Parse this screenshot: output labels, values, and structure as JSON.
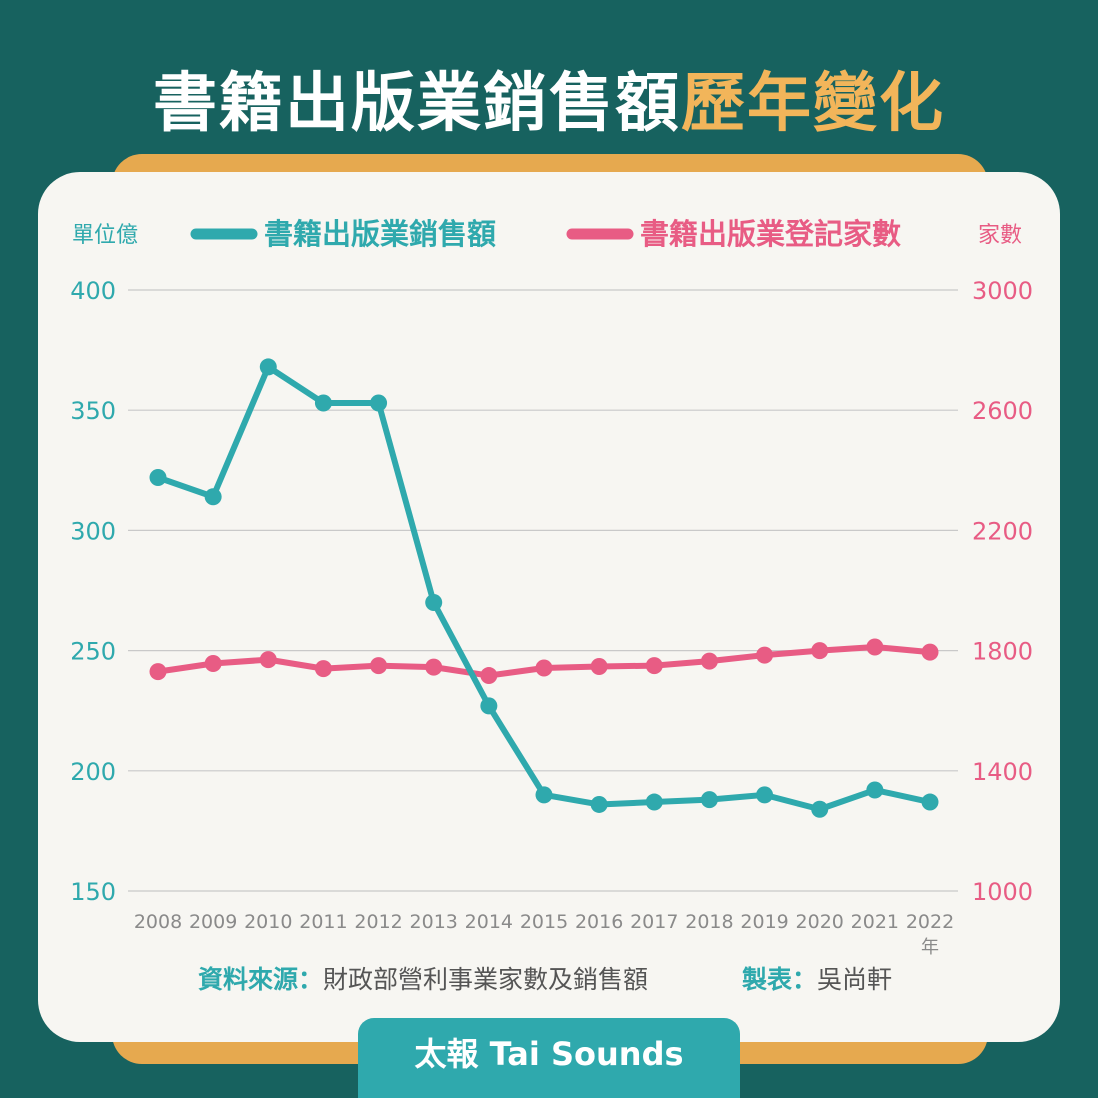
{
  "title": {
    "main": "書籍出版業銷售額",
    "highlight": "歷年變化"
  },
  "source": {
    "label": "資料來源：",
    "text": "財政部營利事業家數及銷售額",
    "maker_label": "製表：",
    "maker": "吳尚軒"
  },
  "brand": "太報 Tai Sounds",
  "colors": {
    "background": "#17625f",
    "accent": "#f2b55a",
    "series_sales": "#2fa9ad",
    "series_count": "#e85c84",
    "card": "#f7f6f2"
  },
  "chart_data": {
    "type": "line",
    "title": "",
    "x_unit": "年",
    "y_left_label": "單位億",
    "y_right_label": "家數",
    "categories": [
      "2008",
      "2009",
      "2010",
      "2011",
      "2012",
      "2013",
      "2014",
      "2015",
      "2016",
      "2017",
      "2018",
      "2019",
      "2020",
      "2021",
      "2022"
    ],
    "y_left": {
      "ylim": [
        150,
        400
      ],
      "ticks": [
        "150",
        "200",
        "250",
        "300",
        "350",
        "400"
      ]
    },
    "y_right": {
      "ylim": [
        1000,
        3000
      ],
      "ticks": [
        "1000",
        "1400",
        "1800",
        "2200",
        "2600",
        "3000"
      ]
    },
    "grid": true,
    "legend_position": "top",
    "series": [
      {
        "name": "書籍出版業銷售額",
        "axis": "left",
        "color": "#2fa9ad",
        "values": [
          322,
          314,
          368,
          353,
          353,
          270,
          227,
          190,
          186,
          187,
          188,
          190,
          184,
          192,
          187
        ]
      },
      {
        "name": "書籍出版業登記家數",
        "axis": "right",
        "color": "#e85c84",
        "values": [
          1730,
          1757,
          1770,
          1740,
          1750,
          1745,
          1717,
          1742,
          1747,
          1750,
          1765,
          1785,
          1800,
          1812,
          1795
        ]
      }
    ]
  }
}
